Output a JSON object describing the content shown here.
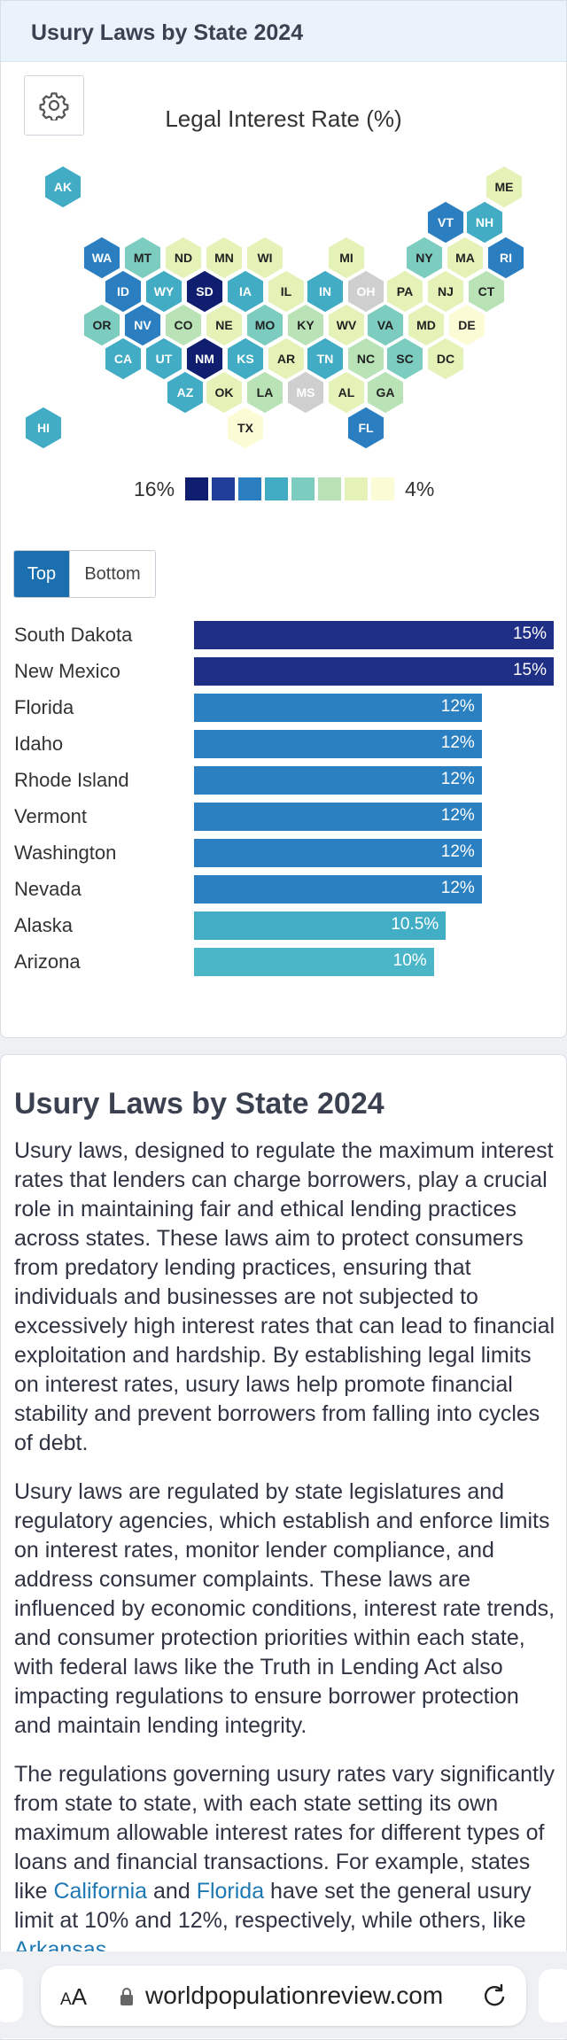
{
  "card": {
    "title": "Usury Laws by State 2024",
    "settings_icon": "gear-icon"
  },
  "chart_data": [
    {
      "type": "heatmap",
      "title": "Legal Interest Rate (%)",
      "legend": {
        "max_label": "16%",
        "min_label": "4%",
        "colors": [
          "#0f1e6e",
          "#213f9a",
          "#2b7fc0",
          "#41acc4",
          "#7cccbf",
          "#b9e3b6",
          "#e4f2b8",
          "#fbfbd6"
        ]
      },
      "states": [
        {
          "abbr": "AK",
          "color": "#41acc4"
        },
        {
          "abbr": "ME",
          "color": "#e4f2b8"
        },
        {
          "abbr": "VT",
          "color": "#2b7fc0"
        },
        {
          "abbr": "NH",
          "color": "#41acc4"
        },
        {
          "abbr": "WA",
          "color": "#2b7fc0"
        },
        {
          "abbr": "MT",
          "color": "#7cccbf"
        },
        {
          "abbr": "ND",
          "color": "#e4f2b8"
        },
        {
          "abbr": "MN",
          "color": "#e4f2b8"
        },
        {
          "abbr": "WI",
          "color": "#e4f2b8"
        },
        {
          "abbr": "MI",
          "color": "#e4f2b8"
        },
        {
          "abbr": "NY",
          "color": "#7cccbf"
        },
        {
          "abbr": "MA",
          "color": "#e4f2b8"
        },
        {
          "abbr": "RI",
          "color": "#2b7fc0"
        },
        {
          "abbr": "ID",
          "color": "#2b7fc0"
        },
        {
          "abbr": "WY",
          "color": "#41acc4"
        },
        {
          "abbr": "SD",
          "color": "#0f1e6e"
        },
        {
          "abbr": "IA",
          "color": "#41acc4"
        },
        {
          "abbr": "IL",
          "color": "#e4f2b8"
        },
        {
          "abbr": "IN",
          "color": "#41acc4"
        },
        {
          "abbr": "OH",
          "color": "#cfcfcf"
        },
        {
          "abbr": "PA",
          "color": "#e4f2b8"
        },
        {
          "abbr": "NJ",
          "color": "#e4f2b8"
        },
        {
          "abbr": "CT",
          "color": "#b9e3b6"
        },
        {
          "abbr": "OR",
          "color": "#7cccbf"
        },
        {
          "abbr": "NV",
          "color": "#2b7fc0"
        },
        {
          "abbr": "CO",
          "color": "#b9e3b6"
        },
        {
          "abbr": "NE",
          "color": "#e4f2b8"
        },
        {
          "abbr": "MO",
          "color": "#7cccbf"
        },
        {
          "abbr": "KY",
          "color": "#b9e3b6"
        },
        {
          "abbr": "WV",
          "color": "#e4f2b8"
        },
        {
          "abbr": "VA",
          "color": "#7cccbf"
        },
        {
          "abbr": "MD",
          "color": "#e4f2b8"
        },
        {
          "abbr": "DE",
          "color": "#fbfbd6"
        },
        {
          "abbr": "CA",
          "color": "#41acc4"
        },
        {
          "abbr": "UT",
          "color": "#41acc4"
        },
        {
          "abbr": "NM",
          "color": "#0f1e6e"
        },
        {
          "abbr": "KS",
          "color": "#41acc4"
        },
        {
          "abbr": "AR",
          "color": "#e4f2b8"
        },
        {
          "abbr": "TN",
          "color": "#41acc4"
        },
        {
          "abbr": "NC",
          "color": "#b9e3b6"
        },
        {
          "abbr": "SC",
          "color": "#7cccbf"
        },
        {
          "abbr": "DC",
          "color": "#e4f2b8"
        },
        {
          "abbr": "AZ",
          "color": "#41acc4"
        },
        {
          "abbr": "OK",
          "color": "#e4f2b8"
        },
        {
          "abbr": "LA",
          "color": "#b9e3b6"
        },
        {
          "abbr": "MS",
          "color": "#cfcfcf"
        },
        {
          "abbr": "AL",
          "color": "#e4f2b8"
        },
        {
          "abbr": "GA",
          "color": "#b9e3b6"
        },
        {
          "abbr": "HI",
          "color": "#41acc4"
        },
        {
          "abbr": "TX",
          "color": "#fbfbd6"
        },
        {
          "abbr": "FL",
          "color": "#2b7fc0"
        }
      ]
    },
    {
      "type": "bar",
      "categories": [
        "South Dakota",
        "New Mexico",
        "Florida",
        "Idaho",
        "Rhode Island",
        "Vermont",
        "Washington",
        "Nevada",
        "Alaska",
        "Arizona"
      ],
      "values": [
        15,
        15,
        12,
        12,
        12,
        12,
        12,
        12,
        10.5,
        10
      ],
      "value_labels": [
        "15%",
        "15%",
        "12%",
        "12%",
        "12%",
        "12%",
        "12%",
        "12%",
        "10.5%",
        "10%"
      ],
      "colors": [
        "#1f2f85",
        "#1f2f85",
        "#2b80c1",
        "#2b80c1",
        "#2b80c1",
        "#2b80c1",
        "#2b80c1",
        "#2b80c1",
        "#41aec6",
        "#4cb6c9"
      ],
      "xlim": [
        0,
        15
      ]
    }
  ],
  "tabs": {
    "top": "Top",
    "bottom": "Bottom"
  },
  "article": {
    "heading": "Usury Laws by State 2024",
    "p1": "Usury laws, designed to regulate the maximum interest rates that lenders can charge borrowers, play a crucial role in maintaining fair and ethical lending practices across states. These laws aim to protect consumers from predatory lending practices, ensuring that individuals and businesses are not subjected to excessively high interest rates that can lead to financial exploitation and hardship. By establishing legal limits on interest rates, usury laws help promote financial stability and prevent borrowers from falling into cycles of debt.",
    "p2": "Usury laws are regulated by state legislatures and regulatory agencies, which establish and enforce limits on interest rates, monitor lender compliance, and address consumer complaints. These laws are influenced by economic conditions, interest rate trends, and consumer protection priorities within each state, with federal laws like the Truth in Lending Act also impacting regulations to ensure borrower protection and maintain lending integrity.",
    "p3_a": "The regulations governing usury rates vary significantly from state to state, with each state setting its own maximum allowable interest rates for different types of loans and financial transactions. For example, states like ",
    "link_california": "California",
    "p3_b": " and ",
    "link_florida": "Florida",
    "p3_c": " have set the general usury limit at 10% and 12%, respectively, while others, like ",
    "link_arkansas": "Arkansas"
  },
  "browser": {
    "text_size": "AA",
    "url": "worldpopulationreview.com",
    "lock_icon": "lock-icon",
    "reload_icon": "reload-icon"
  }
}
